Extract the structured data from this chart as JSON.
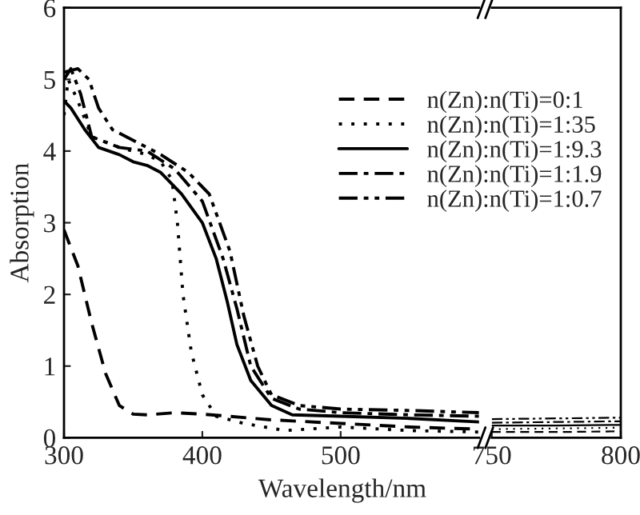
{
  "chart_data": [
    {
      "type": "line",
      "xlabel": "Wavelength/nm",
      "ylabel": "Absorption",
      "xlim": [
        300,
        600
      ],
      "xticks": [
        300,
        400,
        500
      ],
      "ylim": [
        0,
        6
      ],
      "yticks": [
        0,
        1,
        2,
        3,
        4,
        5,
        6
      ],
      "legend": "top right",
      "grid": false,
      "series": [
        {
          "name": "n(Zn):n(Ti)=0:1",
          "color": "#000000",
          "line_style": "dashed",
          "x": [
            300,
            310,
            320,
            330,
            340,
            350,
            360,
            380,
            400,
            450,
            500,
            550,
            600
          ],
          "values": [
            2.9,
            2.4,
            1.6,
            0.9,
            0.45,
            0.33,
            0.32,
            0.35,
            0.33,
            0.25,
            0.2,
            0.15,
            0.12
          ]
        },
        {
          "name": "n(Zn):n(Ti)=1:35",
          "color": "#000000",
          "line_style": "dotted",
          "x": [
            300,
            303,
            310,
            320,
            340,
            360,
            370,
            378,
            382,
            386,
            392,
            400,
            410,
            430,
            460,
            500,
            550,
            600
          ],
          "values": [
            4.5,
            5.0,
            4.7,
            4.2,
            4.05,
            3.95,
            3.85,
            3.6,
            3.0,
            2.0,
            1.2,
            0.6,
            0.3,
            0.2,
            0.1,
            0.15,
            0.1,
            0.08
          ]
        },
        {
          "name": "n(Zn):n(Ti)=1:9.3",
          "color": "#000000",
          "line_style": "solid",
          "x": [
            300,
            305,
            315,
            325,
            340,
            350,
            360,
            370,
            385,
            400,
            410,
            418,
            425,
            435,
            450,
            465,
            500,
            550,
            600
          ],
          "values": [
            4.7,
            4.6,
            4.3,
            4.05,
            3.95,
            3.85,
            3.8,
            3.7,
            3.4,
            3.0,
            2.5,
            1.9,
            1.3,
            0.8,
            0.45,
            0.32,
            0.3,
            0.27,
            0.22
          ]
        },
        {
          "name": "n(Zn):n(Ti)=1:1.9",
          "color": "#000000",
          "line_style": "dashdot",
          "x": [
            300,
            305,
            312,
            320,
            340,
            360,
            380,
            400,
            415,
            425,
            435,
            450,
            470,
            500,
            550,
            600
          ],
          "values": [
            5.0,
            5.15,
            4.8,
            4.2,
            4.05,
            4.0,
            3.75,
            3.3,
            2.5,
            1.8,
            1.0,
            0.55,
            0.4,
            0.35,
            0.32,
            0.3
          ]
        },
        {
          "name": "n(Zn):n(Ti)=1:0.7",
          "color": "#000000",
          "line_style": "dashdotdot",
          "x": [
            300,
            310,
            318,
            325,
            335,
            350,
            370,
            390,
            405,
            420,
            430,
            440,
            450,
            470,
            500,
            550,
            600
          ],
          "values": [
            5.1,
            5.15,
            5.0,
            4.6,
            4.3,
            4.15,
            3.95,
            3.7,
            3.4,
            2.6,
            1.7,
            1.0,
            0.6,
            0.45,
            0.4,
            0.38,
            0.35
          ]
        }
      ]
    },
    {
      "type": "line",
      "xlim": [
        750,
        800
      ],
      "xticks": [
        750,
        800
      ],
      "ylim": [
        0,
        6
      ],
      "tick_labels": "x",
      "grid": false,
      "series": [
        {
          "color": "#000000",
          "line_style": "dashed",
          "x": [
            750,
            775,
            800
          ],
          "values": [
            0.08,
            0.08,
            0.09
          ]
        },
        {
          "color": "#000000",
          "line_style": "dotted",
          "x": [
            750,
            775,
            800
          ],
          "values": [
            0.12,
            0.13,
            0.14
          ]
        },
        {
          "color": "#000000",
          "line_style": "solid",
          "x": [
            750,
            775,
            800
          ],
          "values": [
            0.17,
            0.17,
            0.18
          ]
        },
        {
          "color": "#000000",
          "line_style": "dashdot",
          "x": [
            750,
            775,
            800
          ],
          "values": [
            0.21,
            0.22,
            0.23
          ]
        },
        {
          "color": "#000000",
          "line_style": "dashdotdot",
          "x": [
            750,
            775,
            800
          ],
          "values": [
            0.26,
            0.27,
            0.28
          ]
        }
      ]
    }
  ]
}
